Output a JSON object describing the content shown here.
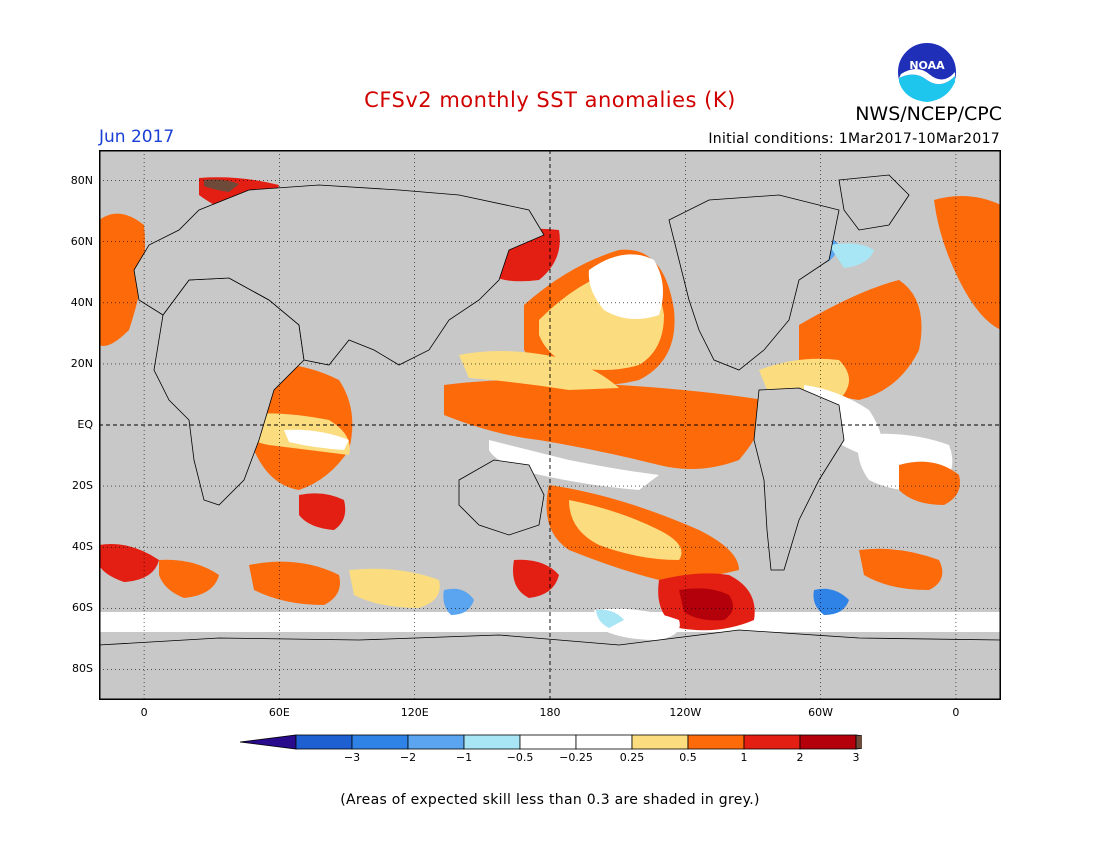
{
  "title": "CFSv2 monthly SST anomalies (K)",
  "agency": "NWS/NCEP/CPC",
  "logo_text": "NOAA",
  "valid_month": "Jun 2017",
  "initial_conditions": "Initial conditions: 1Mar2017-10Mar2017",
  "footnote": "(Areas of expected skill less than 0.3 are shaded in grey.)",
  "map": {
    "lon_range": [
      -20,
      380
    ],
    "lat_range": [
      -90,
      90
    ],
    "lat_ticks": [
      {
        "value": 80,
        "label": "80N"
      },
      {
        "value": 60,
        "label": "60N"
      },
      {
        "value": 40,
        "label": "40N"
      },
      {
        "value": 20,
        "label": "20N"
      },
      {
        "value": 0,
        "label": "EQ"
      },
      {
        "value": -20,
        "label": "20S"
      },
      {
        "value": -40,
        "label": "40S"
      },
      {
        "value": -60,
        "label": "60S"
      },
      {
        "value": -80,
        "label": "80S"
      }
    ],
    "lon_ticks": [
      {
        "value": 0,
        "label": "0"
      },
      {
        "value": 60,
        "label": "60E"
      },
      {
        "value": 120,
        "label": "120E"
      },
      {
        "value": 180,
        "label": "180"
      },
      {
        "value": 240,
        "label": "120W"
      },
      {
        "value": 300,
        "label": "60W"
      },
      {
        "value": 360,
        "label": "0"
      }
    ],
    "grid": "dotted",
    "skill_mask_color": "#c8c8c8"
  },
  "colorbar": {
    "colors": [
      "#2a0a8c",
      "#1e5fd2",
      "#2f82e6",
      "#5aa4f0",
      "#a8e6f5",
      "#ffffff",
      "#ffffff",
      "#fbdd80",
      "#fc6a0a",
      "#e31e12",
      "#b4000a",
      "#6e4a3a"
    ],
    "labels": [
      "−3",
      "−2",
      "−1",
      "−0.5",
      "−0.25",
      "0.25",
      "0.5",
      "1",
      "2",
      "3"
    ]
  },
  "colors": {
    "title": "#d00000",
    "month": "#1a3fd6"
  }
}
